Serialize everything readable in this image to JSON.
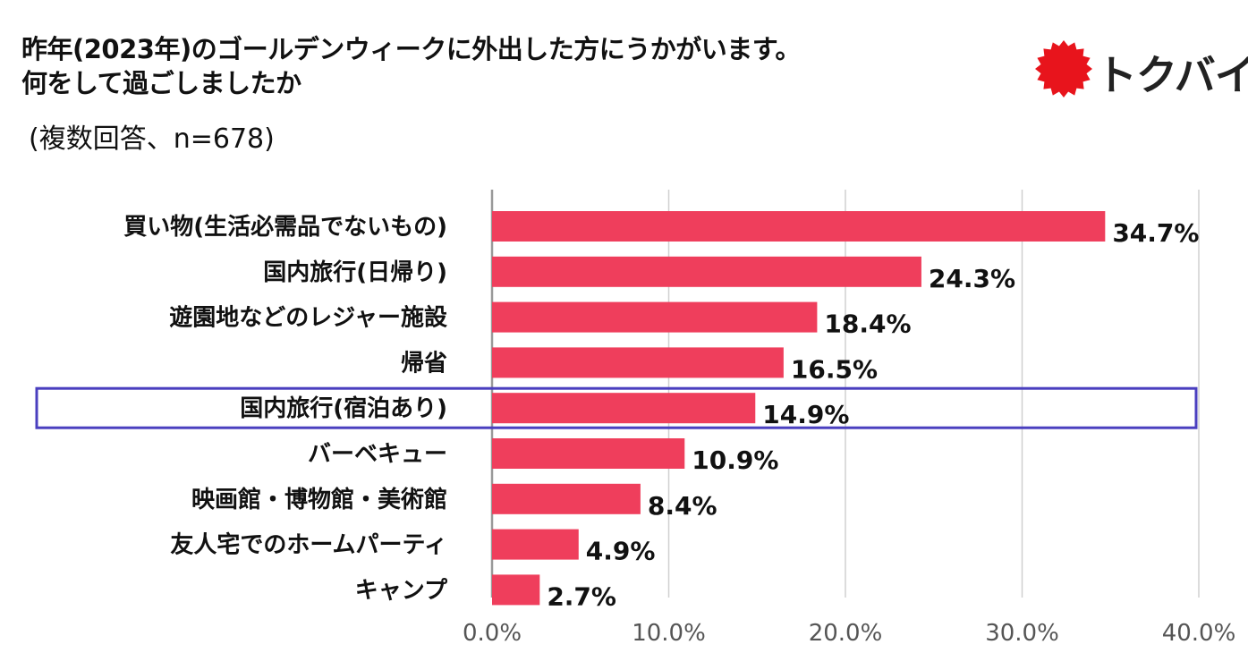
{
  "title_line1": "昨年(2023年)のゴールデンウィークに外出した方にうかがいます。",
  "title_line2": "何をして過ごしましたか",
  "subtitle": "(複数回答、n=678)",
  "logo": {
    "text": "トクバイ",
    "icon": "red-sun-burst-icon",
    "color": "#e8141c"
  },
  "chart_data": {
    "type": "bar",
    "orientation": "horizontal",
    "categories": [
      "買い物(生活必需品でないもの)",
      "国内旅行(日帰り)",
      "遊園地などのレジャー施設",
      "帰省",
      "国内旅行(宿泊あり)",
      "バーベキュー",
      "映画館・博物館・美術館",
      "友人宅でのホームパーティ",
      "キャンプ"
    ],
    "values": [
      34.7,
      24.3,
      18.4,
      16.5,
      14.9,
      10.9,
      8.4,
      4.9,
      2.7
    ],
    "value_labels": [
      "34.7%",
      "24.3%",
      "18.4%",
      "16.5%",
      "14.9%",
      "10.9%",
      "8.4%",
      "4.9%",
      "2.7%"
    ],
    "xlim": [
      0,
      40
    ],
    "x_ticks": [
      0,
      10,
      20,
      30,
      40
    ],
    "x_tick_labels": [
      "0.0%",
      "10.0%",
      "20.0%",
      "30.0%",
      "40.0%"
    ],
    "grid": true,
    "highlighted_category": "国内旅行(宿泊あり)",
    "colors": {
      "bar": "#ef3e5c",
      "highlight_box": "#4a3fbf",
      "grid": "#d0d0d0",
      "axis": "#999999"
    }
  }
}
